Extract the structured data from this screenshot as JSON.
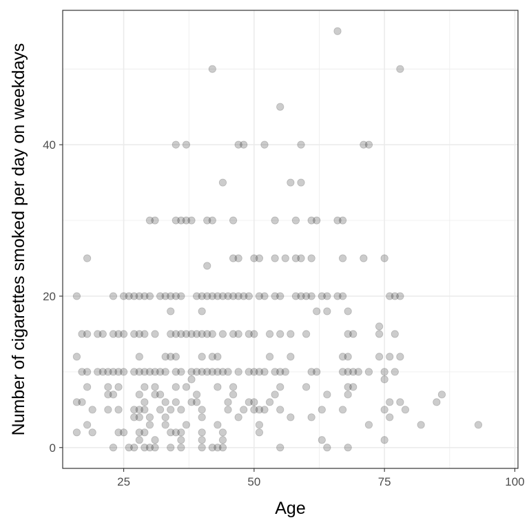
{
  "chart_data": {
    "type": "scatter",
    "title": "",
    "xlabel": "Age",
    "ylabel": "Number of cigarettes smoked per day on weekdays",
    "xlim": [
      13.3,
      100.6
    ],
    "ylim": [
      -2.75,
      57.75
    ],
    "x_ticks": [
      25,
      50,
      75,
      100
    ],
    "y_ticks": [
      0,
      20,
      40
    ],
    "x_minor_ticks": [
      37.5,
      62.5,
      87.5
    ],
    "y_minor_ticks": [
      10,
      30,
      50
    ],
    "x_tick_labels": [
      "25",
      "50",
      "75",
      "100"
    ],
    "y_tick_labels": [
      "0",
      "20",
      "40"
    ],
    "grid": true,
    "legend": "none",
    "point_color": "#000000",
    "point_alpha": 0.2,
    "panel_border_color": "#333333",
    "grid_color": "#ebebeb",
    "points": [
      [
        66,
        55
      ],
      [
        42,
        50
      ],
      [
        78,
        50
      ],
      [
        55,
        45
      ],
      [
        35,
        40
      ],
      [
        37,
        40
      ],
      [
        47,
        40
      ],
      [
        48,
        40
      ],
      [
        52,
        40
      ],
      [
        59,
        40
      ],
      [
        71,
        40
      ],
      [
        72,
        40
      ],
      [
        44,
        35
      ],
      [
        57,
        35
      ],
      [
        59,
        35
      ],
      [
        30,
        30
      ],
      [
        31,
        30
      ],
      [
        35,
        30
      ],
      [
        36,
        30
      ],
      [
        37,
        30
      ],
      [
        38,
        30
      ],
      [
        41,
        30
      ],
      [
        42,
        30
      ],
      [
        46,
        30
      ],
      [
        54,
        30
      ],
      [
        58,
        30
      ],
      [
        61,
        30
      ],
      [
        62,
        30
      ],
      [
        66,
        30
      ],
      [
        67,
        30
      ],
      [
        18,
        25
      ],
      [
        46,
        25
      ],
      [
        47,
        25
      ],
      [
        50,
        25
      ],
      [
        51,
        25
      ],
      [
        54,
        25
      ],
      [
        56,
        25
      ],
      [
        58,
        25
      ],
      [
        59,
        25
      ],
      [
        61,
        25
      ],
      [
        67,
        25
      ],
      [
        71,
        25
      ],
      [
        75,
        25
      ],
      [
        41,
        24
      ],
      [
        16,
        20
      ],
      [
        23,
        20
      ],
      [
        25,
        20
      ],
      [
        26,
        20
      ],
      [
        27,
        20
      ],
      [
        28,
        20
      ],
      [
        29,
        20
      ],
      [
        30,
        20
      ],
      [
        32,
        20
      ],
      [
        33,
        20
      ],
      [
        34,
        20
      ],
      [
        35,
        20
      ],
      [
        36,
        20
      ],
      [
        39,
        20
      ],
      [
        40,
        20
      ],
      [
        41,
        20
      ],
      [
        42,
        20
      ],
      [
        43,
        20
      ],
      [
        44,
        20
      ],
      [
        45,
        20
      ],
      [
        46,
        20
      ],
      [
        47,
        20
      ],
      [
        48,
        20
      ],
      [
        49,
        20
      ],
      [
        51,
        20
      ],
      [
        52,
        20
      ],
      [
        54,
        20
      ],
      [
        55,
        20
      ],
      [
        58,
        20
      ],
      [
        59,
        20
      ],
      [
        60,
        20
      ],
      [
        61,
        20
      ],
      [
        63,
        20
      ],
      [
        64,
        20
      ],
      [
        66,
        20
      ],
      [
        67,
        20
      ],
      [
        76,
        20
      ],
      [
        77,
        20
      ],
      [
        78,
        20
      ],
      [
        34,
        18
      ],
      [
        40,
        18
      ],
      [
        62,
        18
      ],
      [
        64,
        18
      ],
      [
        68,
        18
      ],
      [
        74,
        16
      ],
      [
        17,
        15
      ],
      [
        18,
        15
      ],
      [
        20,
        15
      ],
      [
        21,
        15
      ],
      [
        23,
        15
      ],
      [
        24,
        15
      ],
      [
        25,
        15
      ],
      [
        27,
        15
      ],
      [
        28,
        15
      ],
      [
        29,
        15
      ],
      [
        31,
        15
      ],
      [
        34,
        15
      ],
      [
        35,
        15
      ],
      [
        36,
        15
      ],
      [
        37,
        15
      ],
      [
        38,
        15
      ],
      [
        39,
        15
      ],
      [
        40,
        15
      ],
      [
        41,
        15
      ],
      [
        42,
        15
      ],
      [
        44,
        15
      ],
      [
        46,
        15
      ],
      [
        47,
        15
      ],
      [
        49,
        15
      ],
      [
        50,
        15
      ],
      [
        53,
        15
      ],
      [
        55,
        15
      ],
      [
        57,
        15
      ],
      [
        60,
        15
      ],
      [
        68,
        15
      ],
      [
        69,
        15
      ],
      [
        74,
        15
      ],
      [
        77,
        15
      ],
      [
        16,
        12
      ],
      [
        28,
        12
      ],
      [
        33,
        12
      ],
      [
        34,
        12
      ],
      [
        35,
        12
      ],
      [
        40,
        12
      ],
      [
        42,
        12
      ],
      [
        43,
        12
      ],
      [
        53,
        12
      ],
      [
        57,
        12
      ],
      [
        67,
        12
      ],
      [
        68,
        12
      ],
      [
        74,
        12
      ],
      [
        76,
        12
      ],
      [
        78,
        12
      ],
      [
        17,
        10
      ],
      [
        18,
        10
      ],
      [
        20,
        10
      ],
      [
        21,
        10
      ],
      [
        22,
        10
      ],
      [
        23,
        10
      ],
      [
        24,
        10
      ],
      [
        25,
        10
      ],
      [
        27,
        10
      ],
      [
        28,
        10
      ],
      [
        29,
        10
      ],
      [
        30,
        10
      ],
      [
        31,
        10
      ],
      [
        32,
        10
      ],
      [
        33,
        10
      ],
      [
        35,
        10
      ],
      [
        36,
        10
      ],
      [
        38,
        10
      ],
      [
        39,
        10
      ],
      [
        40,
        10
      ],
      [
        41,
        10
      ],
      [
        42,
        10
      ],
      [
        43,
        10
      ],
      [
        44,
        10
      ],
      [
        45,
        10
      ],
      [
        47,
        10
      ],
      [
        49,
        10
      ],
      [
        50,
        10
      ],
      [
        51,
        10
      ],
      [
        52,
        10
      ],
      [
        54,
        10
      ],
      [
        55,
        10
      ],
      [
        56,
        10
      ],
      [
        61,
        10
      ],
      [
        62,
        10
      ],
      [
        67,
        10
      ],
      [
        68,
        10
      ],
      [
        69,
        10
      ],
      [
        70,
        10
      ],
      [
        72,
        10
      ],
      [
        75,
        10
      ],
      [
        77,
        10
      ],
      [
        38,
        9
      ],
      [
        75,
        9
      ],
      [
        18,
        8
      ],
      [
        22,
        8
      ],
      [
        24,
        8
      ],
      [
        29,
        8
      ],
      [
        31,
        8
      ],
      [
        35,
        8
      ],
      [
        37,
        8
      ],
      [
        43,
        8
      ],
      [
        46,
        8
      ],
      [
        55,
        8
      ],
      [
        60,
        8
      ],
      [
        68,
        8
      ],
      [
        69,
        8
      ],
      [
        22,
        7
      ],
      [
        23,
        7
      ],
      [
        28,
        7
      ],
      [
        31,
        7
      ],
      [
        32,
        7
      ],
      [
        39,
        7
      ],
      [
        46,
        7
      ],
      [
        54,
        7
      ],
      [
        64,
        7
      ],
      [
        68,
        7
      ],
      [
        86,
        7
      ],
      [
        16,
        6
      ],
      [
        17,
        6
      ],
      [
        29,
        6
      ],
      [
        33,
        6
      ],
      [
        35,
        6
      ],
      [
        38,
        6
      ],
      [
        39,
        6
      ],
      [
        45,
        6
      ],
      [
        49,
        6
      ],
      [
        50,
        6
      ],
      [
        53,
        6
      ],
      [
        76,
        6
      ],
      [
        78,
        6
      ],
      [
        85,
        6
      ],
      [
        19,
        5
      ],
      [
        22,
        5
      ],
      [
        24,
        5
      ],
      [
        27,
        5
      ],
      [
        28,
        5
      ],
      [
        29,
        5
      ],
      [
        32,
        5
      ],
      [
        34,
        5
      ],
      [
        36,
        5
      ],
      [
        40,
        5
      ],
      [
        45,
        5
      ],
      [
        48,
        5
      ],
      [
        50,
        5
      ],
      [
        51,
        5
      ],
      [
        52,
        5
      ],
      [
        55,
        5
      ],
      [
        63,
        5
      ],
      [
        67,
        5
      ],
      [
        75,
        5
      ],
      [
        79,
        5
      ],
      [
        27,
        4
      ],
      [
        28,
        4
      ],
      [
        30,
        4
      ],
      [
        33,
        4
      ],
      [
        40,
        4
      ],
      [
        47,
        4
      ],
      [
        57,
        4
      ],
      [
        61,
        4
      ],
      [
        76,
        4
      ],
      [
        18,
        3
      ],
      [
        30,
        3
      ],
      [
        33,
        3
      ],
      [
        37,
        3
      ],
      [
        43,
        3
      ],
      [
        51,
        3
      ],
      [
        72,
        3
      ],
      [
        82,
        3
      ],
      [
        93,
        3
      ],
      [
        16,
        2
      ],
      [
        19,
        2
      ],
      [
        24,
        2
      ],
      [
        25,
        2
      ],
      [
        28,
        2
      ],
      [
        29,
        2
      ],
      [
        34,
        2
      ],
      [
        35,
        2
      ],
      [
        36,
        2
      ],
      [
        40,
        2
      ],
      [
        44,
        2
      ],
      [
        51,
        2
      ],
      [
        28,
        1
      ],
      [
        31,
        1
      ],
      [
        36,
        1
      ],
      [
        40,
        1
      ],
      [
        44,
        1
      ],
      [
        63,
        1
      ],
      [
        75,
        1
      ],
      [
        23,
        0
      ],
      [
        26,
        0
      ],
      [
        27,
        0
      ],
      [
        29,
        0
      ],
      [
        30,
        0
      ],
      [
        31,
        0
      ],
      [
        34,
        0
      ],
      [
        36,
        0
      ],
      [
        40,
        0
      ],
      [
        42,
        0
      ],
      [
        43,
        0
      ],
      [
        44,
        0
      ],
      [
        55,
        0
      ],
      [
        64,
        0
      ],
      [
        68,
        0
      ]
    ]
  }
}
